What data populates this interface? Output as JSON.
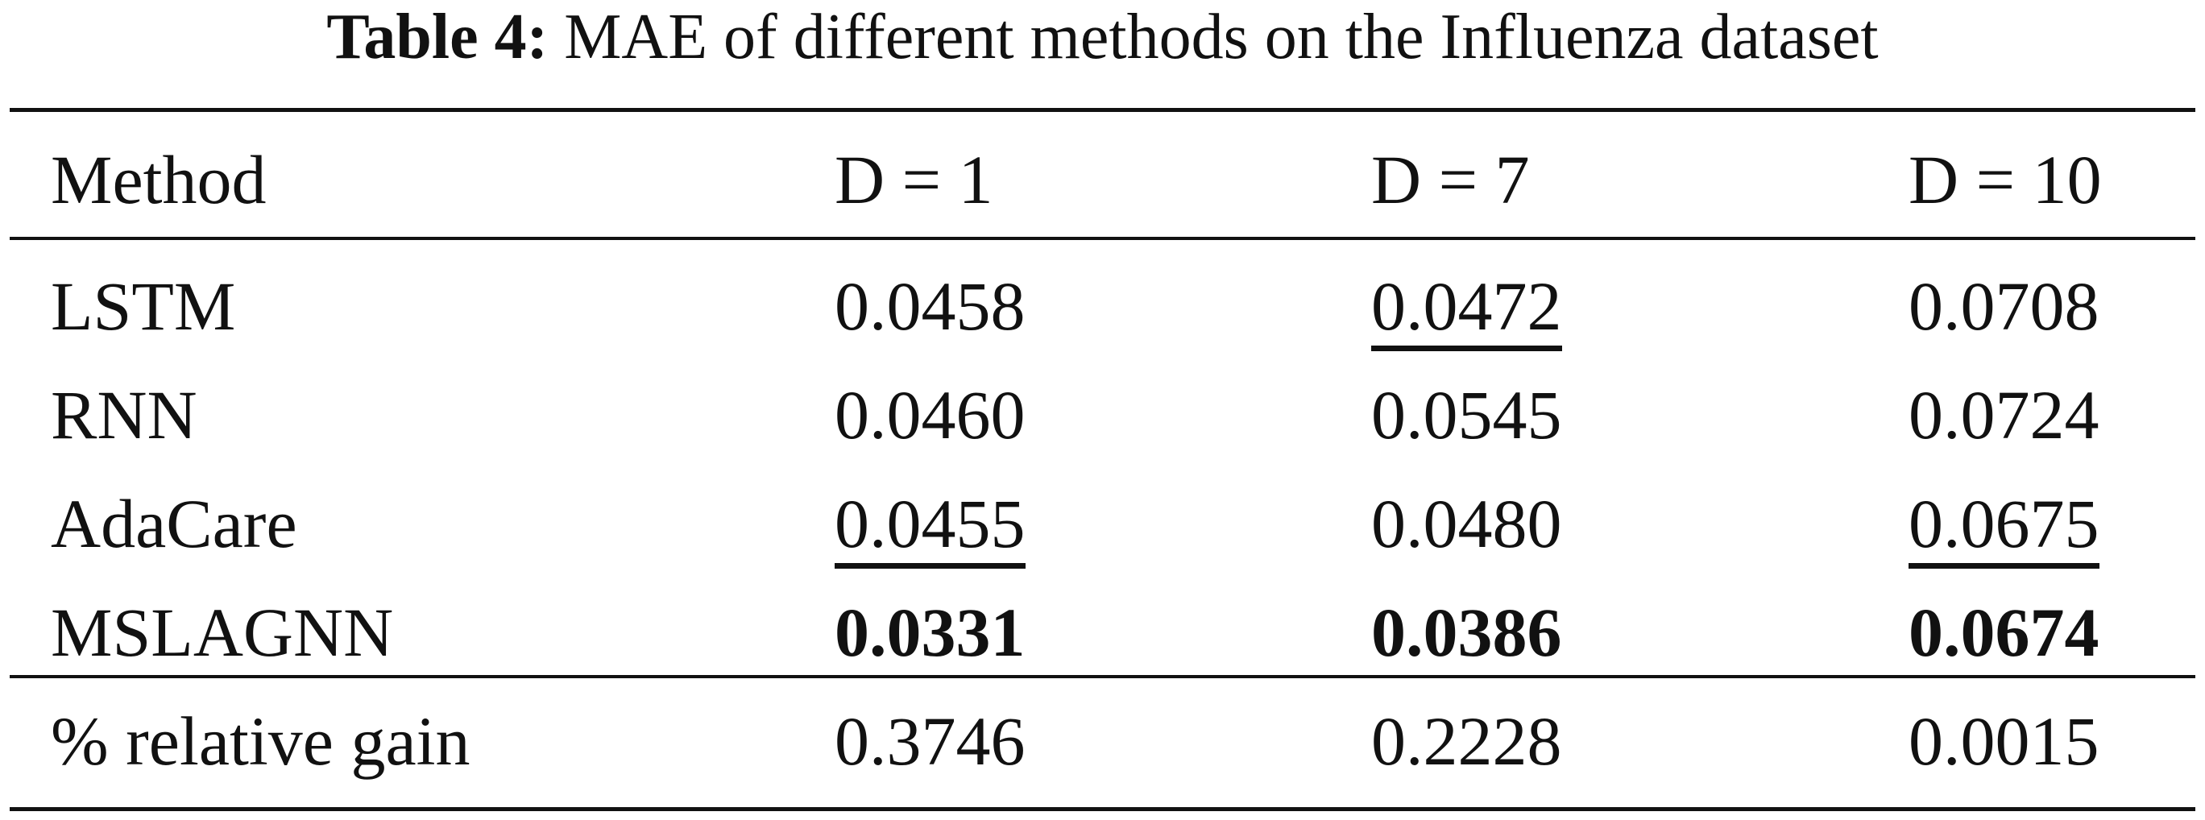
{
  "caption": {
    "label": "Table 4:",
    "text": "MAE of different methods on the Influenza dataset"
  },
  "table": {
    "headers": [
      "Method",
      "D = 1",
      "D = 7",
      "D = 10"
    ],
    "rows": [
      {
        "method": "LSTM",
        "values": [
          "0.0458",
          "0.0472",
          "0.0708"
        ]
      },
      {
        "method": "RNN",
        "values": [
          "0.0460",
          "0.0545",
          "0.0724"
        ]
      },
      {
        "method": "AdaCare",
        "values": [
          "0.0455",
          "0.0480",
          "0.0675"
        ]
      },
      {
        "method": "MSLAGNN",
        "values": [
          "0.0331",
          "0.0386",
          "0.0674"
        ]
      }
    ],
    "gain_row": {
      "method": "% relative gain",
      "values": [
        "0.3746",
        "0.2228",
        "0.0015"
      ]
    }
  }
}
